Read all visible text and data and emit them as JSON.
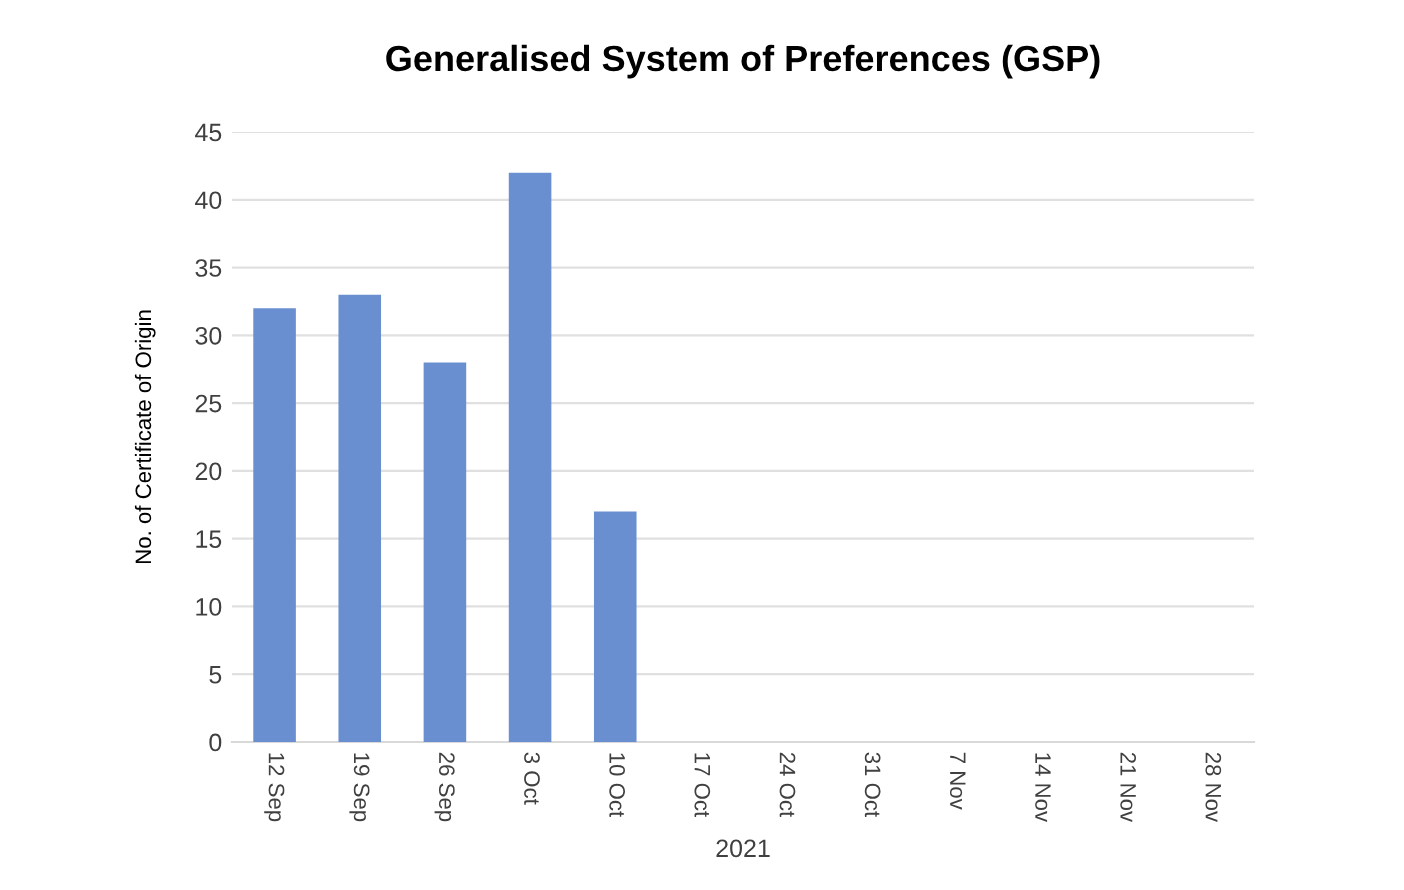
{
  "chart_data": {
    "type": "bar",
    "title": "Generalised System of Preferences (GSP)",
    "ylabel": "No. of Certificate of Origin",
    "xlabel": "2021",
    "categories": [
      "12 Sep",
      "19 Sep",
      "26 Sep",
      "3 Oct",
      "10 Oct",
      "17 Oct",
      "24 Oct",
      "31 Oct",
      "7 Nov",
      "14 Nov",
      "21 Nov",
      "28 Nov"
    ],
    "values": [
      32,
      33,
      28,
      42,
      17,
      null,
      null,
      null,
      null,
      null,
      null,
      null
    ],
    "color": "#6a8fd0",
    "ylim": [
      0,
      45
    ],
    "yticks": [
      0,
      5,
      10,
      15,
      20,
      25,
      30,
      35,
      40,
      45
    ],
    "grid": "y",
    "legend": false
  }
}
